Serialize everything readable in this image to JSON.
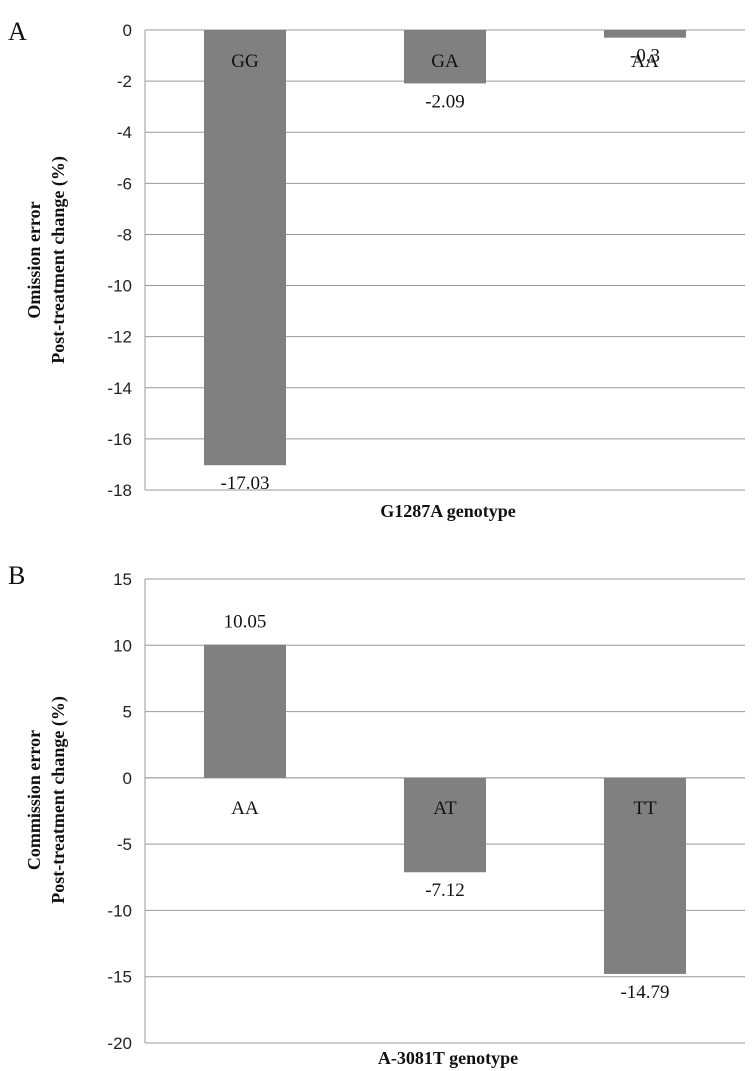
{
  "chart_data": [
    {
      "type": "bar",
      "panel": "A",
      "categories": [
        "GG",
        "GA",
        "AA"
      ],
      "values": [
        -17.03,
        -2.09,
        -0.3
      ],
      "value_labels": [
        "-17.03",
        "-2.09",
        "-0.3"
      ],
      "xlabel": "G1287A genotype",
      "ylabel": [
        "Omission error",
        "Post-treatment change (%)"
      ],
      "ylim": [
        -18,
        0
      ],
      "yticks": [
        0,
        -2,
        -4,
        -6,
        -8,
        -10,
        -12,
        -14,
        -16,
        -18
      ],
      "ytick_labels": [
        "0",
        "-2",
        "-4",
        "-6",
        "-8",
        "-10",
        "-12",
        "-14",
        "-16",
        "-18"
      ],
      "grid": true,
      "bar_color": "#808080"
    },
    {
      "type": "bar",
      "panel": "B",
      "categories": [
        "AA",
        "AT",
        "TT"
      ],
      "values": [
        10.05,
        -7.12,
        -14.79
      ],
      "value_labels": [
        "10.05",
        "-7.12",
        "-14.79"
      ],
      "xlabel": "A-3081T genotype",
      "ylabel": [
        "Commission error",
        "Post-treatment change (%)"
      ],
      "ylim": [
        -20,
        15
      ],
      "yticks": [
        15,
        10,
        5,
        0,
        -5,
        -10,
        -15,
        -20
      ],
      "ytick_labels": [
        "15",
        "10",
        "5",
        "0",
        "-5",
        "-10",
        "-15",
        "-20"
      ],
      "grid": true,
      "bar_color": "#808080"
    }
  ]
}
